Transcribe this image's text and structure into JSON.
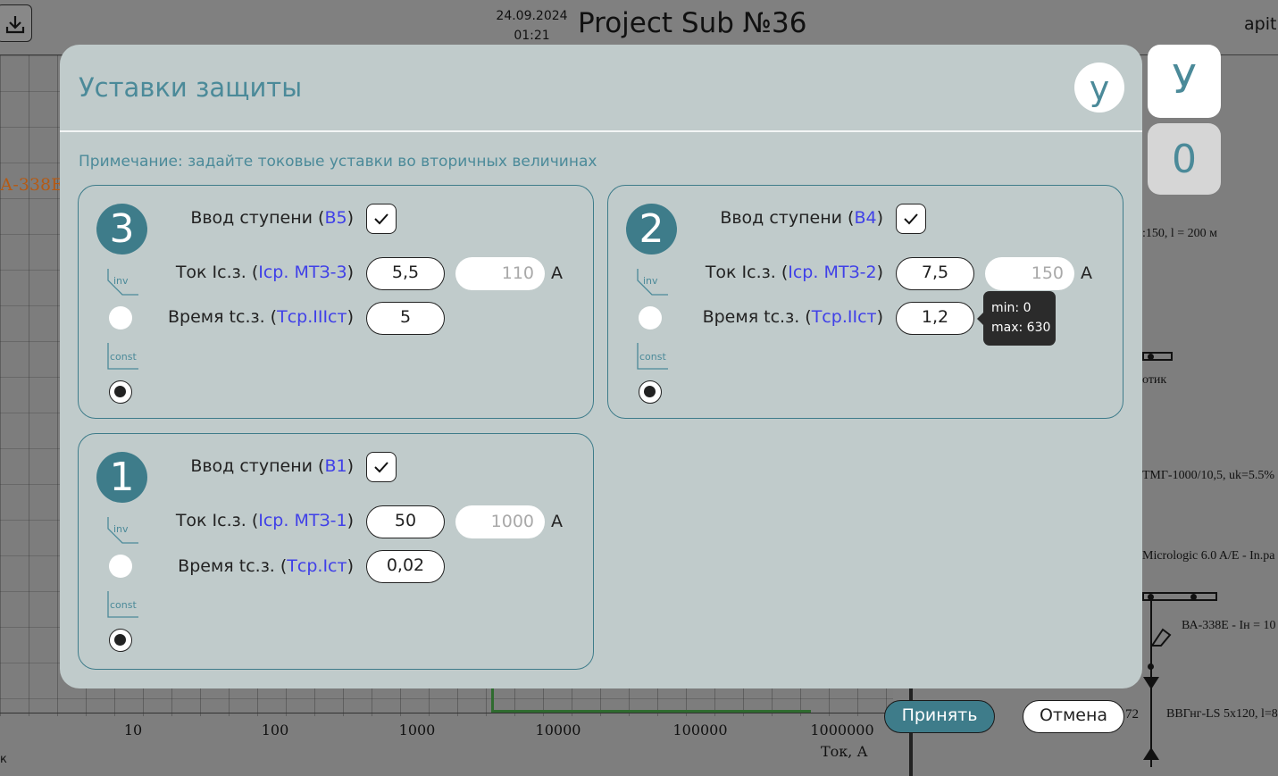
{
  "header": {
    "date": "24.09.2024",
    "time": "01:21",
    "project_title": "Project Sub №36",
    "user_partial": "apit"
  },
  "side_buttons": {
    "u_label": "У",
    "zero_label": "0"
  },
  "background": {
    "left_label": "А-338Е",
    "axis_ticks": [
      "10",
      "100",
      "1000",
      "10000",
      "100000",
      "1000000"
    ],
    "axis_label": "Ток, А",
    "schema_labels": [
      ":150, l = 200 м",
      "отик",
      "ТМГ-1000/10,5, uk=5.5%",
      "Micrologic 6.0 A/E - In.pa",
      "ВА-338Е - Iн = 10",
      "ВВГнг-LS 5x120, l=8"
    ],
    "num_72": "72",
    "bottom_k": "к"
  },
  "footer": {
    "accept_label": "Принять",
    "cancel_label": "Отмена"
  },
  "dialog": {
    "title": "Уставки защиты",
    "close_label": "у",
    "note": "Примечание: задайте токовые уставки во вторичных величинах",
    "curve_inv": "inv",
    "curve_const": "const",
    "stages": [
      {
        "number": "3",
        "enable_label": "Ввод ступени (",
        "enable_var": "В5",
        "current_label": "Ток Iс.з. (",
        "current_var": "Iср. МТЗ-3",
        "current_value": "5,5",
        "primary_value": "110",
        "unit": "А",
        "time_label": "Время tс.з. (",
        "time_var": "Tср.IIIст",
        "time_value": "5",
        "enabled": true,
        "mode": "const"
      },
      {
        "number": "2",
        "enable_label": "Ввод ступени (",
        "enable_var": "В4",
        "current_label": "Ток Iс.з. (",
        "current_var": "Iср. МТЗ-2",
        "current_value": "7,5",
        "primary_value": "150",
        "unit": "А",
        "time_label": "Время tс.з. (",
        "time_var": "Tср.IIст",
        "time_value": "1,2",
        "enabled": true,
        "mode": "const"
      },
      {
        "number": "1",
        "enable_label": "Ввод ступени (",
        "enable_var": "В1",
        "current_label": "Ток Iс.з. (",
        "current_var": "Iср. МТЗ-1",
        "current_value": "50",
        "primary_value": "1000",
        "unit": "А",
        "time_label": "Время tс.з. (",
        "time_var": "Tср.Iст",
        "time_value": "0,02",
        "enabled": true,
        "mode": "const"
      }
    ],
    "tooltip": {
      "min": "min: 0",
      "max": "max: 630"
    }
  }
}
